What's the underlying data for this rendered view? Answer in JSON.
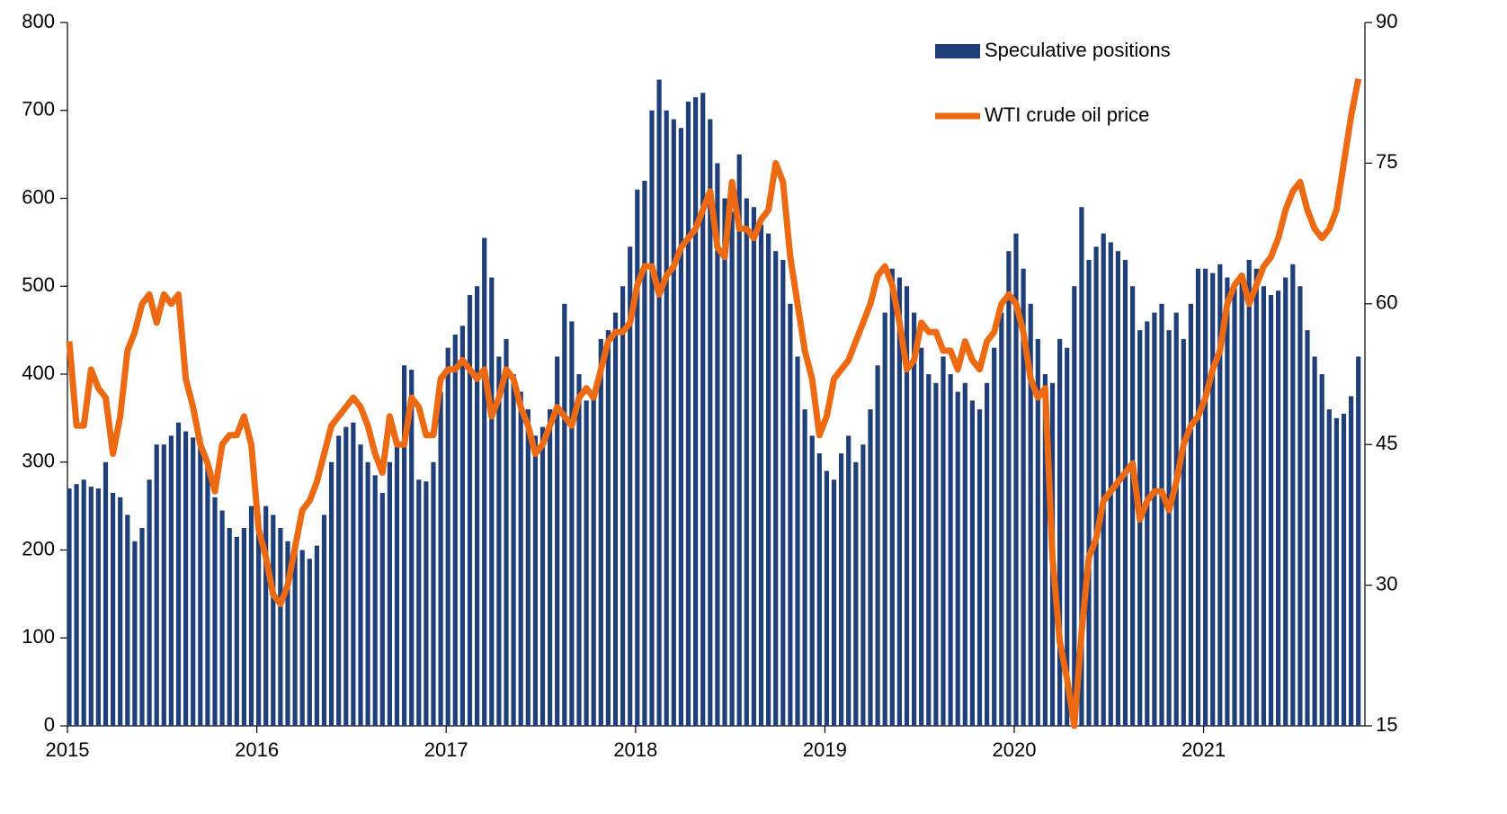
{
  "chart_data": {
    "type": "bar-line",
    "categories": [
      "2015",
      null,
      null,
      null,
      null,
      null,
      null,
      null,
      null,
      null,
      null,
      null,
      null,
      null,
      null,
      null,
      null,
      null,
      null,
      null,
      null,
      null,
      null,
      null,
      null,
      null,
      "2016",
      null,
      null,
      null,
      null,
      null,
      null,
      null,
      null,
      null,
      null,
      null,
      null,
      null,
      null,
      null,
      null,
      null,
      null,
      null,
      null,
      null,
      null,
      null,
      null,
      null,
      "2017",
      null,
      null,
      null,
      null,
      null,
      null,
      null,
      null,
      null,
      null,
      null,
      null,
      null,
      null,
      null,
      null,
      null,
      null,
      null,
      null,
      null,
      null,
      null,
      null,
      null,
      "2018",
      null,
      null,
      null,
      null,
      null,
      null,
      null,
      null,
      null,
      null,
      null,
      null,
      null,
      null,
      null,
      null,
      null,
      null,
      null,
      null,
      null,
      null,
      null,
      null,
      null,
      "2019",
      null,
      null,
      null,
      null,
      null,
      null,
      null,
      null,
      null,
      null,
      null,
      null,
      null,
      null,
      null,
      null,
      null,
      null,
      null,
      null,
      null,
      null,
      null,
      null,
      null,
      "2020",
      null,
      null,
      null,
      null,
      null,
      null,
      null,
      null,
      null,
      null,
      null,
      null,
      null,
      null,
      null,
      null,
      null,
      null,
      null,
      null,
      null,
      null,
      null,
      null,
      null,
      "2021",
      null,
      null,
      null,
      null,
      null,
      null,
      null,
      null,
      null,
      null,
      null,
      null,
      null,
      null,
      null,
      null,
      null,
      null,
      null,
      null,
      null
    ],
    "series": [
      {
        "name": "Speculative positions",
        "type": "bar",
        "color": "#1f3f7a",
        "values": [
          270,
          275,
          280,
          272,
          270,
          300,
          265,
          260,
          240,
          210,
          225,
          280,
          320,
          320,
          330,
          345,
          335,
          328,
          328,
          300,
          260,
          245,
          225,
          215,
          225,
          250,
          240,
          250,
          240,
          225,
          210,
          200,
          200,
          190,
          205,
          240,
          300,
          330,
          340,
          345,
          320,
          300,
          285,
          265,
          300,
          320,
          410,
          405,
          280,
          278,
          300,
          380,
          430,
          445,
          455,
          490,
          500,
          555,
          510,
          420,
          440,
          400,
          380,
          360,
          330,
          340,
          360,
          420,
          480,
          460,
          400,
          370,
          380,
          440,
          450,
          470,
          500,
          545,
          610,
          620,
          700,
          735,
          700,
          690,
          680,
          710,
          715,
          720,
          690,
          640,
          600,
          585,
          650,
          600,
          590,
          570,
          560,
          540,
          530,
          480,
          420,
          360,
          330,
          310,
          290,
          280,
          310,
          330,
          300,
          320,
          360,
          410,
          470,
          520,
          510,
          500,
          470,
          430,
          400,
          390,
          420,
          400,
          380,
          390,
          370,
          360,
          390,
          430,
          470,
          540,
          560,
          520,
          480,
          440,
          400,
          390,
          440,
          430,
          500,
          590,
          530,
          545,
          560,
          550,
          540,
          530,
          500,
          450,
          460,
          470,
          480,
          450,
          470,
          440,
          480,
          520,
          520,
          515,
          525,
          510,
          500,
          515,
          530,
          520,
          500,
          490,
          495,
          510,
          525,
          500,
          450,
          420,
          400,
          360,
          350,
          355,
          375,
          420
        ]
      },
      {
        "name": "WTI crude oil price",
        "type": "line",
        "axis": "y2",
        "color": "#ed6a12",
        "values": [
          56,
          47,
          47,
          53,
          51,
          50,
          44,
          48,
          55,
          57,
          60,
          61,
          58,
          61,
          60,
          61,
          52,
          49,
          45,
          43,
          40,
          45,
          46,
          46,
          48,
          45,
          36,
          33,
          29,
          28,
          30,
          34,
          38,
          39,
          41,
          44,
          47,
          48,
          49,
          50,
          49,
          47,
          44,
          42,
          48,
          45,
          45,
          50,
          49,
          46,
          46,
          52,
          53,
          53,
          54,
          53,
          52,
          53,
          48,
          50,
          53,
          52,
          49,
          47,
          44,
          45,
          47,
          49,
          48,
          47,
          50,
          51,
          50,
          53,
          56,
          57,
          57,
          58,
          62,
          64,
          64,
          61,
          63,
          64,
          66,
          67,
          68,
          70,
          72,
          66,
          65,
          73,
          68,
          68,
          67,
          69,
          70,
          75,
          73,
          65,
          60,
          55,
          52,
          46,
          48,
          52,
          53,
          54,
          56,
          58,
          60,
          63,
          64,
          62,
          58,
          53,
          54,
          58,
          57,
          57,
          55,
          55,
          53,
          56,
          54,
          53,
          56,
          57,
          60,
          61,
          60,
          57,
          52,
          50,
          51,
          33,
          24,
          20,
          15,
          25,
          33,
          35,
          39,
          40,
          41,
          42,
          43,
          37,
          39,
          40,
          40,
          38,
          41,
          45,
          47,
          48,
          50,
          53,
          55,
          60,
          62,
          63,
          60,
          62,
          64,
          65,
          67,
          70,
          72,
          73,
          70,
          68,
          67,
          68,
          70,
          75,
          80,
          84
        ]
      }
    ],
    "ylim": [
      0,
      800
    ],
    "yticks": [
      0,
      100,
      200,
      300,
      400,
      500,
      600,
      700,
      800
    ],
    "y2lim": [
      15,
      90
    ],
    "y2ticks": [
      15,
      30,
      45,
      60,
      75,
      90
    ],
    "legend": "top-right"
  }
}
